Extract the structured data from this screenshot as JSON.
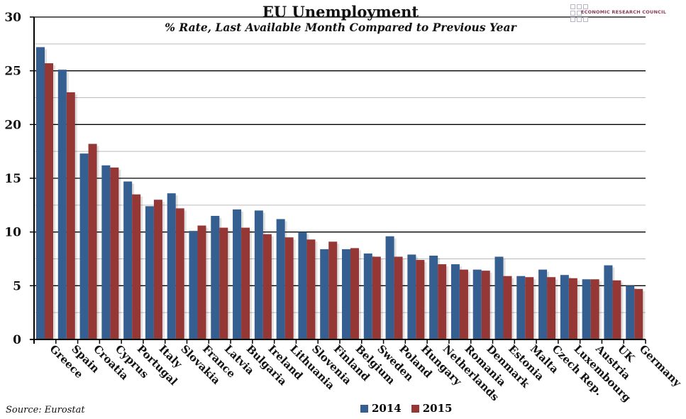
{
  "chart_data": {
    "type": "bar",
    "title": "EU Unemployment",
    "subtitle": "% Rate, Last Available Month Compared to Previous Year",
    "source": "Source: Eurostat",
    "brand": "ECONOMIC RESEARCH COUNCIL",
    "xlabel": "",
    "ylabel": "",
    "ylim": [
      0,
      30
    ],
    "yticks": [
      "0",
      "5",
      "10",
      "15",
      "20",
      "25",
      "30"
    ],
    "grid": "major every 5, minor every 2.5",
    "legend": "bottom",
    "categories": [
      "Greece",
      "Spain",
      "Croatia",
      "Cyprus",
      "Portugal",
      "Italy",
      "Slovakia",
      "France",
      "Latvia",
      "Bulgaria",
      "Ireland",
      "Lithuania",
      "Slovenia",
      "Finland",
      "Belgium",
      "Sweden",
      "Poland",
      "Hungary",
      "Netherlands",
      "Romania",
      "Denmark",
      "Estonia",
      "Malta",
      "Czech Rep.",
      "Luxembourg",
      "Austria",
      "UK",
      "Germany"
    ],
    "series": [
      {
        "name": "2014",
        "color": "#365f91",
        "values": [
          27.2,
          25.1,
          17.3,
          16.2,
          14.7,
          12.4,
          13.6,
          10.1,
          11.5,
          12.1,
          12.0,
          11.2,
          10.0,
          8.4,
          8.4,
          8.0,
          9.6,
          7.9,
          7.8,
          7.0,
          6.5,
          7.7,
          5.9,
          6.5,
          6.0,
          5.6,
          6.9,
          5.0
        ]
      },
      {
        "name": "2015",
        "color": "#953735",
        "values": [
          25.7,
          23.0,
          18.2,
          16.0,
          13.5,
          13.0,
          12.2,
          10.6,
          10.4,
          10.4,
          9.8,
          9.5,
          9.3,
          9.1,
          8.5,
          7.7,
          7.7,
          7.4,
          7.0,
          6.5,
          6.4,
          5.9,
          5.8,
          5.8,
          5.7,
          5.6,
          5.5,
          4.7
        ]
      }
    ]
  }
}
